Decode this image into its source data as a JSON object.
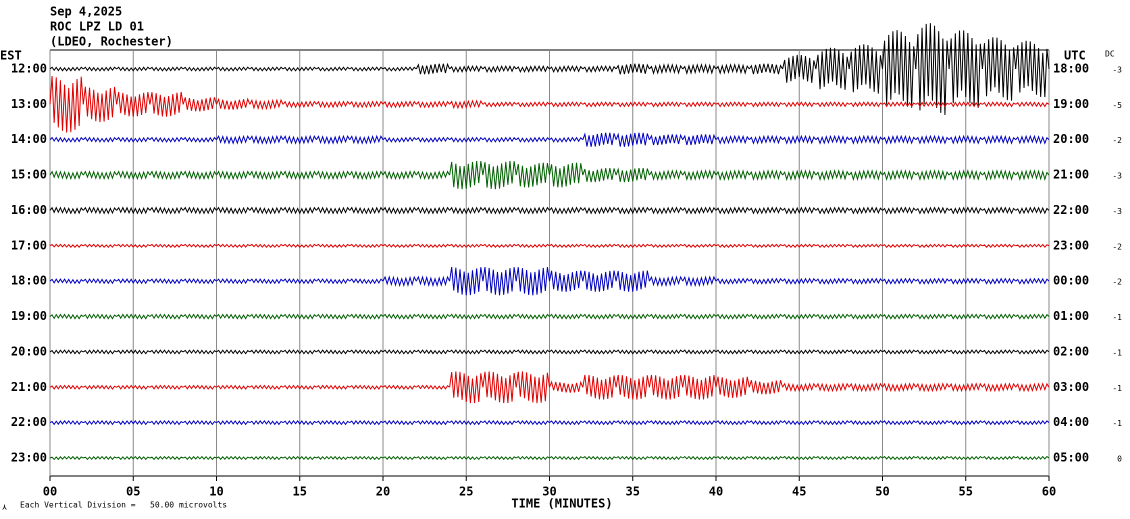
{
  "chart_data": {
    "type": "helicorder",
    "title_lines": [
      "Sep 4,2025",
      "ROC LPZ LD 01",
      "(LDEO, Rochester)"
    ],
    "left_axis_label": "EST",
    "right_axis_label": "UTC",
    "dc_label": "DC",
    "x_label": "TIME (MINUTES)",
    "note": "Each Vertical Division =   50.00 microvolts",
    "xlim": [
      0,
      60
    ],
    "xticks": [
      {
        "value": 0,
        "label": "00"
      },
      {
        "value": 5,
        "label": "05"
      },
      {
        "value": 10,
        "label": "10"
      },
      {
        "value": 15,
        "label": "15"
      },
      {
        "value": 20,
        "label": "20"
      },
      {
        "value": 25,
        "label": "25"
      },
      {
        "value": 30,
        "label": "30"
      },
      {
        "value": 35,
        "label": "35"
      },
      {
        "value": 40,
        "label": "40"
      },
      {
        "value": 45,
        "label": "45"
      },
      {
        "value": 50,
        "label": "50"
      },
      {
        "value": 55,
        "label": "55"
      },
      {
        "value": 60,
        "label": "60"
      }
    ],
    "grid": true,
    "rows": [
      {
        "left": "12:00",
        "right": "18:00",
        "dc": -3,
        "color": "#000000",
        "values": [
          0.05,
          0.05,
          0.05,
          0.05,
          0.05,
          0.05,
          0.05,
          0.05,
          0.05,
          0.05,
          0.05,
          0.15,
          0.08,
          0.08,
          0.08,
          0.08,
          0.08,
          0.15,
          0.12,
          0.12,
          0.12,
          0.15,
          0.4,
          0.6,
          0.7,
          1.1,
          1.3,
          1.1,
          0.9,
          0.8
        ]
      },
      {
        "left": "13:00",
        "right": "19:00",
        "dc": -5,
        "color": "#e00000",
        "values": [
          0.8,
          0.5,
          0.35,
          0.35,
          0.2,
          0.15,
          0.12,
          0.08,
          0.08,
          0.08,
          0.08,
          0.08,
          0.1,
          0.06,
          0.06,
          0.06,
          0.06,
          0.06,
          0.06,
          0.06,
          0.06,
          0.06,
          0.06,
          0.06,
          0.06,
          0.06,
          0.06,
          0.06,
          0.06,
          0.06
        ]
      },
      {
        "left": "14:00",
        "right": "20:00",
        "dc": -2,
        "color": "#0000c0",
        "values": [
          0.06,
          0.06,
          0.06,
          0.06,
          0.06,
          0.1,
          0.1,
          0.1,
          0.1,
          0.1,
          0.06,
          0.06,
          0.06,
          0.06,
          0.06,
          0.06,
          0.2,
          0.2,
          0.15,
          0.15,
          0.1,
          0.1,
          0.1,
          0.1,
          0.1,
          0.1,
          0.1,
          0.1,
          0.1,
          0.1
        ]
      },
      {
        "left": "15:00",
        "right": "21:00",
        "dc": -3,
        "color": "#006000",
        "values": [
          0.1,
          0.1,
          0.1,
          0.1,
          0.1,
          0.1,
          0.1,
          0.1,
          0.1,
          0.1,
          0.1,
          0.1,
          0.4,
          0.4,
          0.35,
          0.35,
          0.2,
          0.2,
          0.12,
          0.12,
          0.12,
          0.12,
          0.12,
          0.12,
          0.12,
          0.12,
          0.12,
          0.12,
          0.12,
          0.12
        ]
      },
      {
        "left": "16:00",
        "right": "22:00",
        "dc": -3,
        "color": "#000000",
        "values": [
          0.08,
          0.08,
          0.08,
          0.08,
          0.08,
          0.08,
          0.08,
          0.08,
          0.08,
          0.08,
          0.08,
          0.08,
          0.08,
          0.08,
          0.08,
          0.08,
          0.08,
          0.08,
          0.08,
          0.08,
          0.08,
          0.08,
          0.08,
          0.08,
          0.08,
          0.08,
          0.08,
          0.08,
          0.08,
          0.08
        ]
      },
      {
        "left": "17:00",
        "right": "23:00",
        "dc": -2,
        "color": "#e00000",
        "values": [
          0.04,
          0.04,
          0.04,
          0.04,
          0.04,
          0.04,
          0.04,
          0.04,
          0.04,
          0.04,
          0.04,
          0.04,
          0.04,
          0.04,
          0.04,
          0.04,
          0.04,
          0.04,
          0.04,
          0.04,
          0.04,
          0.04,
          0.04,
          0.04,
          0.04,
          0.04,
          0.04,
          0.04,
          0.04,
          0.04
        ]
      },
      {
        "left": "18:00",
        "right": "00:00",
        "dc": -2,
        "color": "#0000c0",
        "values": [
          0.06,
          0.06,
          0.06,
          0.06,
          0.06,
          0.06,
          0.06,
          0.06,
          0.06,
          0.06,
          0.12,
          0.12,
          0.4,
          0.4,
          0.4,
          0.3,
          0.3,
          0.3,
          0.12,
          0.12,
          0.07,
          0.07,
          0.07,
          0.07,
          0.07,
          0.07,
          0.07,
          0.07,
          0.07,
          0.07
        ]
      },
      {
        "left": "19:00",
        "right": "01:00",
        "dc": -1,
        "color": "#006000",
        "values": [
          0.06,
          0.06,
          0.06,
          0.06,
          0.06,
          0.06,
          0.06,
          0.06,
          0.06,
          0.06,
          0.06,
          0.06,
          0.06,
          0.06,
          0.06,
          0.06,
          0.06,
          0.06,
          0.06,
          0.06,
          0.06,
          0.06,
          0.06,
          0.06,
          0.06,
          0.06,
          0.06,
          0.06,
          0.06,
          0.06
        ]
      },
      {
        "left": "20:00",
        "right": "02:00",
        "dc": -1,
        "color": "#000000",
        "values": [
          0.05,
          0.05,
          0.05,
          0.05,
          0.05,
          0.05,
          0.05,
          0.05,
          0.05,
          0.05,
          0.05,
          0.05,
          0.05,
          0.05,
          0.05,
          0.05,
          0.05,
          0.05,
          0.05,
          0.05,
          0.05,
          0.05,
          0.05,
          0.05,
          0.05,
          0.05,
          0.05,
          0.05,
          0.05,
          0.05
        ]
      },
      {
        "left": "21:00",
        "right": "03:00",
        "dc": -1,
        "color": "#e00000",
        "values": [
          0.05,
          0.05,
          0.05,
          0.05,
          0.05,
          0.05,
          0.05,
          0.05,
          0.05,
          0.05,
          0.05,
          0.05,
          0.45,
          0.45,
          0.45,
          0.15,
          0.35,
          0.35,
          0.35,
          0.35,
          0.3,
          0.2,
          0.1,
          0.1,
          0.1,
          0.1,
          0.1,
          0.1,
          0.1,
          0.1
        ]
      },
      {
        "left": "22:00",
        "right": "04:00",
        "dc": -1,
        "color": "#0000c0",
        "values": [
          0.05,
          0.05,
          0.05,
          0.05,
          0.05,
          0.05,
          0.05,
          0.05,
          0.05,
          0.05,
          0.05,
          0.05,
          0.05,
          0.05,
          0.05,
          0.05,
          0.05,
          0.05,
          0.05,
          0.05,
          0.05,
          0.05,
          0.05,
          0.05,
          0.05,
          0.05,
          0.05,
          0.05,
          0.05,
          0.05
        ]
      },
      {
        "left": "23:00",
        "right": "05:00",
        "dc": 0,
        "color": "#006000",
        "values": [
          0.04,
          0.04,
          0.04,
          0.04,
          0.04,
          0.04,
          0.04,
          0.04,
          0.04,
          0.04,
          0.04,
          0.04,
          0.04,
          0.04,
          0.04,
          0.04,
          0.04,
          0.04,
          0.04,
          0.04,
          0.04,
          0.04,
          0.04,
          0.04,
          0.04,
          0.04,
          0.04,
          0.04,
          0.04,
          0.04
        ]
      }
    ]
  }
}
